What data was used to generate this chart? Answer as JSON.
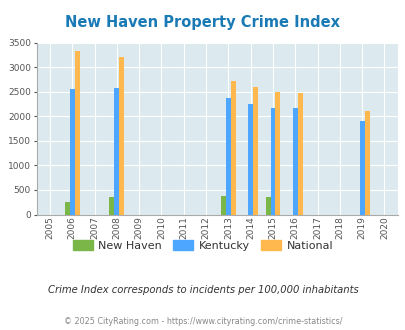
{
  "title": "New Haven Property Crime Index",
  "years": [
    2005,
    2006,
    2007,
    2008,
    2009,
    2010,
    2011,
    2012,
    2013,
    2014,
    2015,
    2016,
    2017,
    2018,
    2019,
    2020
  ],
  "new_haven": {
    "2006": 250,
    "2008": 350,
    "2013": 370,
    "2015": 350
  },
  "kentucky": {
    "2006": 2550,
    "2008": 2590,
    "2013": 2380,
    "2014": 2260,
    "2015": 2180,
    "2016": 2180,
    "2019": 1900
  },
  "national": {
    "2006": 3340,
    "2008": 3210,
    "2013": 2730,
    "2014": 2600,
    "2015": 2500,
    "2016": 2480,
    "2019": 2110
  },
  "bar_width": 0.22,
  "color_new_haven": "#7ab648",
  "color_kentucky": "#4da6ff",
  "color_national": "#ffb84d",
  "bg_color": "#dce9ee",
  "ylim": [
    0,
    3500
  ],
  "yticks": [
    0,
    500,
    1000,
    1500,
    2000,
    2500,
    3000,
    3500
  ],
  "grid_color": "#ffffff",
  "subtitle": "Crime Index corresponds to incidents per 100,000 inhabitants",
  "footer": "© 2025 CityRating.com - https://www.cityrating.com/crime-statistics/",
  "legend_labels": [
    "New Haven",
    "Kentucky",
    "National"
  ]
}
